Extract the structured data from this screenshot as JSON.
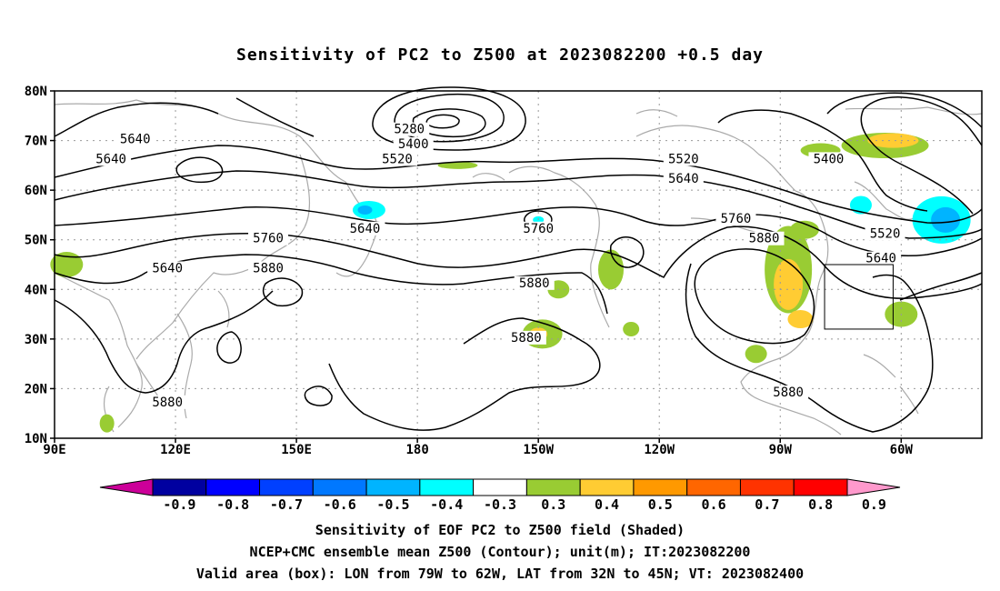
{
  "title": "Sensitivity of PC2 to Z500 at 2023082200 +0.5 day",
  "axes": {
    "lat_labels": [
      "80N",
      "70N",
      "60N",
      "50N",
      "40N",
      "30N",
      "20N",
      "10N"
    ],
    "lon_labels": [
      "90E",
      "120E",
      "150E",
      "180",
      "150W",
      "120W",
      "90W",
      "60W"
    ]
  },
  "contour_labels": [
    {
      "text": "5280",
      "lon": 178,
      "lat": 72
    },
    {
      "text": "5400",
      "lon": 179,
      "lat": 69
    },
    {
      "text": "5520",
      "lon": 175,
      "lat": 66
    },
    {
      "text": "5640",
      "lon": 110,
      "lat": 70
    },
    {
      "text": "5640",
      "lon": 104,
      "lat": 66
    },
    {
      "text": "5640",
      "lon": 167,
      "lat": 52
    },
    {
      "text": "5640",
      "lon": 118,
      "lat": 44
    },
    {
      "text": "5760",
      "lon": 143,
      "lat": 50
    },
    {
      "text": "5880",
      "lon": 143,
      "lat": 44
    },
    {
      "text": "5760",
      "lon": -150,
      "lat": 52
    },
    {
      "text": "5880",
      "lon": -151,
      "lat": 41
    },
    {
      "text": "5880",
      "lon": -153,
      "lat": 30
    },
    {
      "text": "5880",
      "lon": 118,
      "lat": 17
    },
    {
      "text": "5520",
      "lon": -114,
      "lat": 66
    },
    {
      "text": "5640",
      "lon": -114,
      "lat": 62
    },
    {
      "text": "5760",
      "lon": -101,
      "lat": 54
    },
    {
      "text": "5880",
      "lon": -94,
      "lat": 50
    },
    {
      "text": "5880",
      "lon": -88,
      "lat": 19
    },
    {
      "text": "5400",
      "lon": -78,
      "lat": 66
    },
    {
      "text": "5520",
      "lon": -64,
      "lat": 51
    },
    {
      "text": "5640",
      "lon": -65,
      "lat": 46
    }
  ],
  "colorbar": {
    "labels": [
      "-0.9",
      "-0.8",
      "-0.7",
      "-0.6",
      "-0.5",
      "-0.4",
      "-0.3",
      "0.3",
      "0.4",
      "0.5",
      "0.6",
      "0.7",
      "0.8",
      "0.9"
    ],
    "colors": [
      "#0000a0",
      "#0000ff",
      "#0040ff",
      "#0078ff",
      "#00b4ff",
      "#00ffff",
      "#ffffff",
      "#99cc33",
      "#ffcc33",
      "#ff9900",
      "#ff6600",
      "#ff3300",
      "#ff0000"
    ],
    "low_end_color": "#cc0099",
    "high_end_color": "#ff99cc"
  },
  "box": {
    "lon_min": -79,
    "lon_max": -62,
    "lat_min": 32,
    "lat_max": 45
  },
  "caption": [
    "Sensitivity of EOF PC2 to Z500 field (Shaded)",
    "NCEP+CMC ensemble mean Z500 (Contour); unit(m); IT:2023082200",
    "Valid area (box): LON from 79W to 62W, LAT from 32N to 45N; VT: 2023082400"
  ]
}
